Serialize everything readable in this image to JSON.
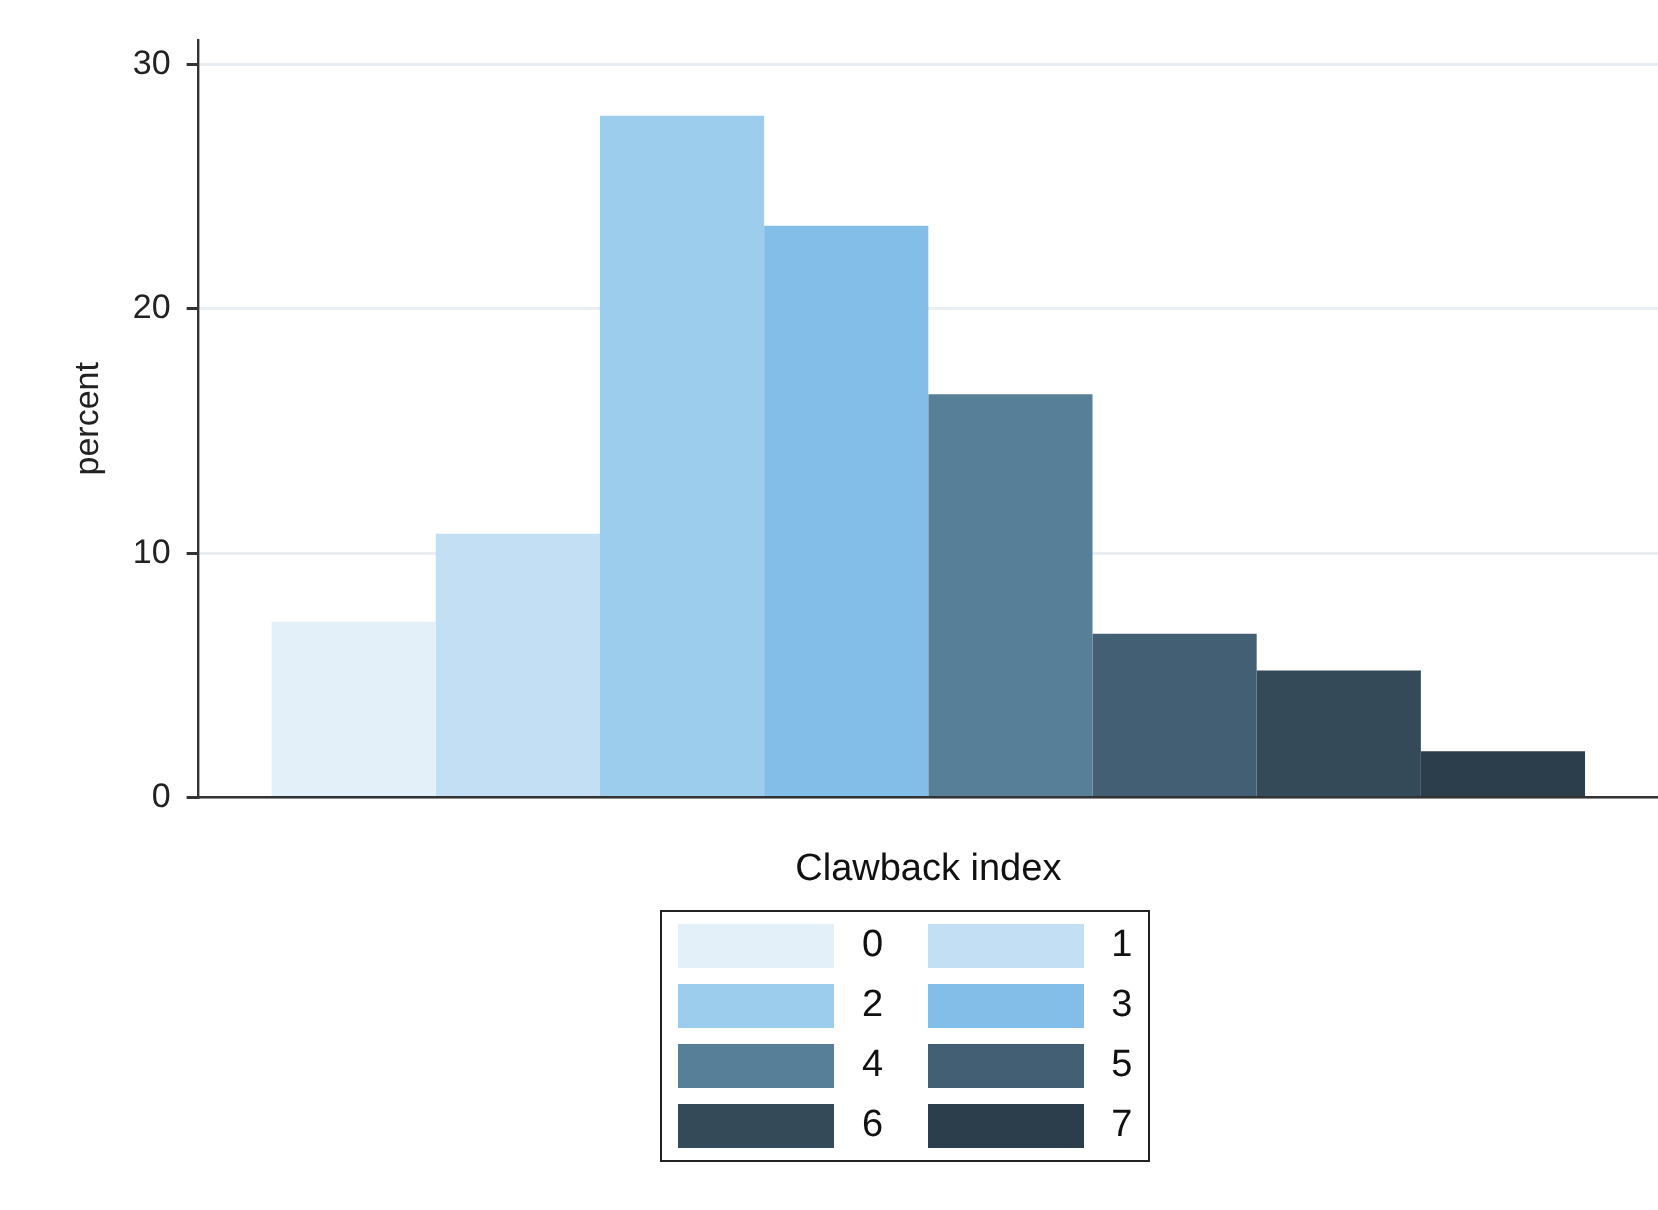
{
  "chart_data": {
    "type": "bar",
    "xlabel": "Clawback index",
    "ylabel": "percent",
    "categories": [
      null
    ],
    "ylim": [
      0,
      31
    ],
    "yticks": [
      0,
      10,
      20,
      30
    ],
    "grid": "y",
    "legend": "bottom",
    "series": [
      {
        "name": "0",
        "color": "#e3eff9",
        "values": [
          7.2
        ]
      },
      {
        "name": "1",
        "color": "#c2dff3",
        "values": [
          10.8
        ]
      },
      {
        "name": "2",
        "color": "#9dcdec",
        "values": [
          27.9
        ]
      },
      {
        "name": "3",
        "color": "#83bee9",
        "values": [
          23.4
        ]
      },
      {
        "name": "4",
        "color": "#577f98",
        "values": [
          16.5
        ]
      },
      {
        "name": "5",
        "color": "#425f73",
        "values": [
          6.7
        ]
      },
      {
        "name": "6",
        "color": "#354a59",
        "values": [
          5.2
        ]
      },
      {
        "name": "7",
        "color": "#2c3e4c",
        "values": [
          1.9
        ]
      }
    ]
  }
}
